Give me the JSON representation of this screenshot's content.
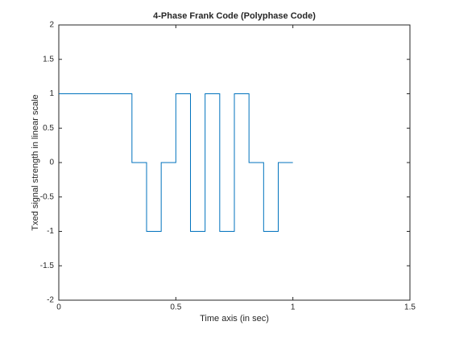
{
  "chart_data": {
    "type": "stairs",
    "title": "4-Phase Frank Code (Polyphase Code)",
    "x_label": "Time axis (in sec)",
    "y_label": "Txed signal strength in linear scale",
    "x": [
      0,
      0.0625,
      0.125,
      0.1875,
      0.25,
      0.3125,
      0.375,
      0.4375,
      0.5,
      0.5625,
      0.625,
      0.6875,
      0.75,
      0.8125,
      0.875,
      0.9375,
      1.0
    ],
    "values": [
      1,
      1,
      1,
      1,
      1,
      0,
      -1,
      0,
      1,
      -1,
      1,
      -1,
      1,
      0,
      -1,
      0,
      0
    ],
    "color": "#0072bd",
    "xlim": [
      0,
      1.5
    ],
    "xticks": [
      0,
      0.5,
      1,
      1.5
    ],
    "ylim": [
      -2,
      2
    ],
    "yticks": [
      -2,
      -1.5,
      -1,
      -0.5,
      0,
      0.5,
      1,
      1.5,
      2
    ],
    "grid": false
  }
}
